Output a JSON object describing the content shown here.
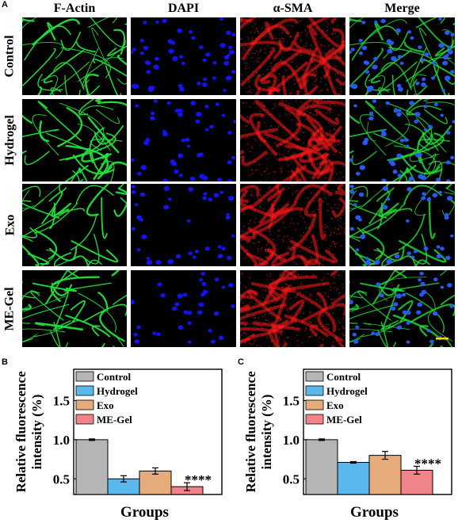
{
  "figure": {
    "panel_letters": [
      "A",
      "B",
      "C"
    ],
    "column_headers": [
      "F-Actin",
      "DAPI",
      "α-SMA",
      "Merge"
    ],
    "row_labels": [
      "Control",
      "Hydrogel",
      "Exo",
      "ME-Gel"
    ],
    "colors": {
      "factin": "#22e03a",
      "dapi": "#1414ff",
      "asma": "#ff1a1a",
      "background": "#000000",
      "scale_bar": "#ffd400"
    }
  },
  "chart_data": [
    {
      "type": "bar",
      "categories": [
        "Control",
        "Hydrogel",
        "Exo",
        "ME-Gel"
      ],
      "values": [
        1.0,
        0.5,
        0.6,
        0.4
      ],
      "errors": [
        0.01,
        0.04,
        0.04,
        0.05
      ],
      "colors": [
        "#b5b5b5",
        "#5bb8ec",
        "#e6ab7b",
        "#f0848a"
      ],
      "xlabel": "Groups",
      "ylabel_lines": [
        "Relative fluorescence",
        "intensity (%)"
      ],
      "ylim": [
        0.3,
        1.9
      ],
      "yticks": [
        0.5,
        1.0,
        1.5
      ],
      "legend": [
        "Control",
        "Hydrogel",
        "Exo",
        "ME-Gel"
      ],
      "legend_position": "top-left",
      "annotation": "****"
    },
    {
      "type": "bar",
      "categories": [
        "Control",
        "Hydrogel",
        "Exo",
        "ME-Gel"
      ],
      "values": [
        1.0,
        0.71,
        0.8,
        0.61
      ],
      "errors": [
        0.01,
        0.01,
        0.05,
        0.05
      ],
      "colors": [
        "#b5b5b5",
        "#5bb8ec",
        "#e6ab7b",
        "#f0848a"
      ],
      "xlabel": "Groups",
      "ylabel_lines": [
        "Relative fluorescence",
        "intensity (%)"
      ],
      "ylim": [
        0.3,
        1.9
      ],
      "yticks": [
        0.5,
        1.0,
        1.5
      ],
      "legend": [
        "Control",
        "Hydrogel",
        "Exo",
        "ME-Gel"
      ],
      "legend_position": "top-left",
      "annotation": "****"
    }
  ]
}
